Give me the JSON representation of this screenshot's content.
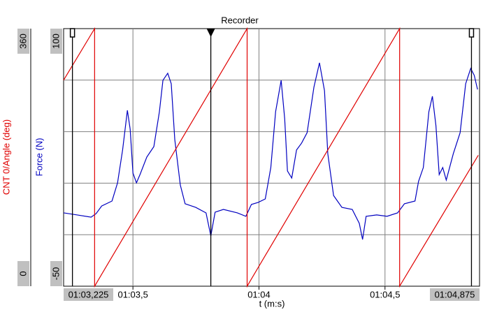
{
  "chart_data": {
    "type": "line",
    "title": "Recorder",
    "xlabel": "t (m:s)",
    "xlim": [
      63.225,
      64.875
    ],
    "xticks": [
      {
        "value": 63.225,
        "label": "01:03,225"
      },
      {
        "value": 63.5,
        "label": "01:03,5"
      },
      {
        "value": 64,
        "label": "01:04"
      },
      {
        "value": 64.5,
        "label": "01:04,5"
      },
      {
        "value": 64.875,
        "label": "01:04,875"
      }
    ],
    "ylim": [
      -50,
      100
    ],
    "yticks": [
      -50,
      100
    ],
    "ygrid": [
      -20,
      10,
      40,
      70
    ],
    "y2lim": [
      0,
      360
    ],
    "y2ticks": [
      0,
      360
    ],
    "grid": true,
    "cursors": [
      63.26,
      63.809,
      64.843
    ],
    "series": [
      {
        "name": "Force (N)",
        "color": "#0000c0",
        "x": [
          63.225,
          63.279,
          63.334,
          63.354,
          63.376,
          63.417,
          63.439,
          63.459,
          63.478,
          63.489,
          63.5,
          63.514,
          63.528,
          63.555,
          63.583,
          63.605,
          63.619,
          63.638,
          63.652,
          63.666,
          63.688,
          63.707,
          63.749,
          63.79,
          63.809,
          63.826,
          63.859,
          63.914,
          63.948,
          63.97,
          63.997,
          64.025,
          64.047,
          64.066,
          64.088,
          64.102,
          64.113,
          64.13,
          64.149,
          64.169,
          64.191,
          64.218,
          64.24,
          64.26,
          64.273,
          64.296,
          64.329,
          64.37,
          64.398,
          64.411,
          64.425,
          64.467,
          64.508,
          64.55,
          64.577,
          64.619,
          64.633,
          64.652,
          64.674,
          64.688,
          64.702,
          64.715,
          64.729,
          64.743,
          64.771,
          64.798,
          64.82,
          64.84,
          64.854,
          64.867
        ],
        "values": [
          -7.3,
          -8.5,
          -9.8,
          -7.7,
          -3.3,
          -0.4,
          10.2,
          29.3,
          52.4,
          41.5,
          15.9,
          10.2,
          15.0,
          25.2,
          31.3,
          51.6,
          69.9,
          74.0,
          67.9,
          35.4,
          8.9,
          -2.0,
          -4.1,
          -7.3,
          -20.7,
          -6.9,
          -5.3,
          -7.3,
          -9.3,
          -2.4,
          -1.2,
          0.8,
          19.1,
          51.6,
          69.9,
          47.6,
          17.1,
          13.0,
          29.3,
          33.3,
          39.4,
          65.9,
          80.1,
          63.8,
          27.2,
          2.8,
          -4.1,
          -5.3,
          -13.4,
          -22.8,
          -9.3,
          -8.5,
          -9.3,
          -7.3,
          -2.0,
          -0.4,
          11.0,
          19.1,
          51.6,
          60.6,
          43.5,
          15.0,
          19.1,
          11.8,
          27.2,
          39.4,
          67.9,
          76.8,
          72.8,
          64.6
        ]
      },
      {
        "name": "CNT 0/Angle (deg)",
        "color": "#e00000",
        "axis": "y2",
        "x": [
          63.225,
          63.348,
          63.348,
          63.953,
          63.953,
          64.558,
          64.558,
          64.87
        ],
        "values": [
          288,
          360,
          0,
          360,
          0,
          360,
          0,
          183
        ]
      }
    ]
  }
}
